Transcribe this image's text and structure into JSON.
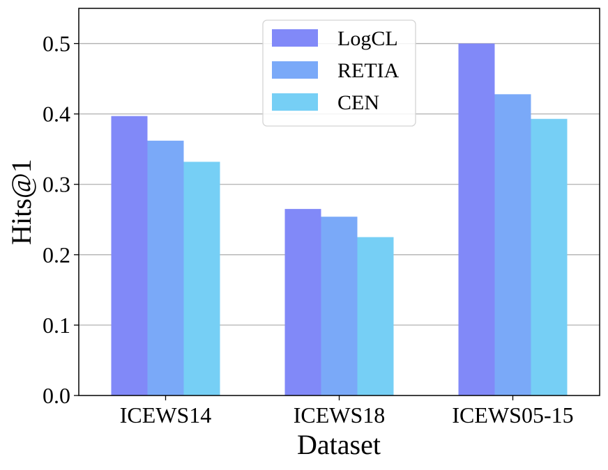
{
  "chart_data": {
    "type": "bar",
    "title": "",
    "xlabel": "Dataset",
    "ylabel": "Hits@1",
    "categories": [
      "ICEWS14",
      "ICEWS18",
      "ICEWS05-15"
    ],
    "series": [
      {
        "name": "LogCL",
        "values": [
          0.397,
          0.265,
          0.5
        ],
        "color": "#8189f8"
      },
      {
        "name": "RETIA",
        "values": [
          0.362,
          0.254,
          0.428
        ],
        "color": "#7aa9f8"
      },
      {
        "name": "CEN",
        "values": [
          0.332,
          0.225,
          0.393
        ],
        "color": "#76cff5"
      }
    ],
    "ylim": [
      0,
      0.55
    ],
    "yticks": [
      0.0,
      0.1,
      0.2,
      0.3,
      0.4,
      0.5
    ],
    "ytick_labels": [
      "0.0",
      "0.1",
      "0.2",
      "0.3",
      "0.4",
      "0.5"
    ],
    "grid": "horizontal",
    "legend_position": "top-center"
  }
}
